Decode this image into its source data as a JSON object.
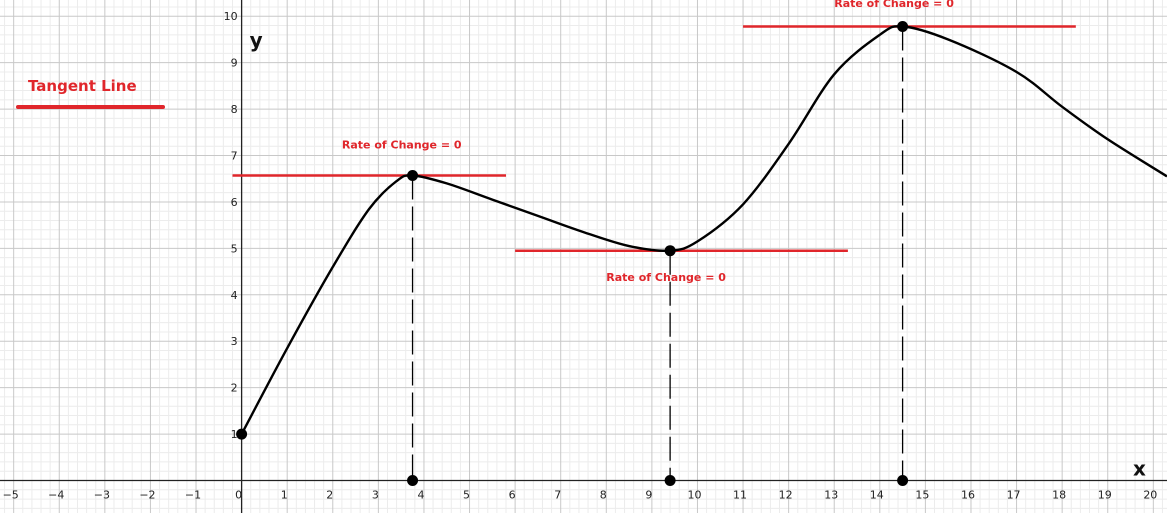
{
  "chart_data": {
    "type": "line",
    "xlabel": "x",
    "ylabel": "y",
    "xlim": [
      -5.3,
      20.3
    ],
    "ylim": [
      -0.7,
      10.35
    ],
    "grid": true,
    "x_ticks": [
      -5,
      -4,
      -3,
      -2,
      -1,
      0,
      1,
      2,
      3,
      4,
      5,
      6,
      7,
      8,
      9,
      10,
      11,
      12,
      13,
      14,
      15,
      16,
      17,
      18,
      19,
      20
    ],
    "y_ticks": [
      1,
      2,
      3,
      4,
      5,
      6,
      7,
      8,
      9,
      10
    ],
    "x_tick_labels": [
      "−5",
      "−4",
      "−3",
      "−2",
      "−1",
      "0",
      "1",
      "2",
      "3",
      "4",
      "5",
      "6",
      "7",
      "8",
      "9",
      "10",
      "11",
      "12",
      "13",
      "14",
      "15",
      "16",
      "17",
      "18",
      "19",
      "20"
    ],
    "y_tick_labels": [
      "1",
      "2",
      "3",
      "4",
      "5",
      "6",
      "7",
      "8",
      "9",
      "10"
    ],
    "curve": {
      "points": [
        [
          0,
          1.0
        ],
        [
          1,
          2.85
        ],
        [
          2,
          4.6
        ],
        [
          2.8,
          5.85
        ],
        [
          3.4,
          6.45
        ],
        [
          3.75,
          6.57
        ],
        [
          4.5,
          6.4
        ],
        [
          5.5,
          6.05
        ],
        [
          6.5,
          5.7
        ],
        [
          7.5,
          5.35
        ],
        [
          8.5,
          5.05
        ],
        [
          9.4,
          4.95
        ],
        [
          10.0,
          5.15
        ],
        [
          11.0,
          5.95
        ],
        [
          12.0,
          7.25
        ],
        [
          13.0,
          8.75
        ],
        [
          14.0,
          9.6
        ],
        [
          14.5,
          9.78
        ],
        [
          15.5,
          9.5
        ],
        [
          17.0,
          8.8
        ],
        [
          18.0,
          8.05
        ],
        [
          19.0,
          7.35
        ],
        [
          20.3,
          6.55
        ]
      ],
      "color": "#000000"
    },
    "points": [
      {
        "x": 0,
        "y": 1
      },
      {
        "x": 3.75,
        "y": 6.57
      },
      {
        "x": 9.4,
        "y": 4.95
      },
      {
        "x": 14.5,
        "y": 9.78
      },
      {
        "x": 3.75,
        "y": 0
      },
      {
        "x": 9.4,
        "y": 0
      },
      {
        "x": 14.5,
        "y": 0
      }
    ],
    "tangent_lines": [
      {
        "x_from": -0.2,
        "x_to": 5.8,
        "y": 6.57
      },
      {
        "x_from": 6.0,
        "x_to": 13.3,
        "y": 4.95
      },
      {
        "x_from": 11.0,
        "x_to": 18.3,
        "y": 9.78
      }
    ],
    "drop_lines": [
      {
        "x": 3.75,
        "y_top": 6.57
      },
      {
        "x": 9.4,
        "y_top": 4.95
      },
      {
        "x": 14.5,
        "y_top": 9.78
      }
    ],
    "annotations": [
      {
        "text": "Rate of Change  = 0",
        "x": 2.2,
        "y": 7.15
      },
      {
        "text": "Rate of Change  = 0",
        "x": 8.0,
        "y": 4.3
      },
      {
        "text": "Rate of Change  = 0",
        "x": 13.0,
        "y": 10.2
      }
    ],
    "legend": {
      "label": "Tangent Line",
      "color": "#e0262b",
      "position": "top-left"
    },
    "tangent_color": "#e0262b"
  }
}
